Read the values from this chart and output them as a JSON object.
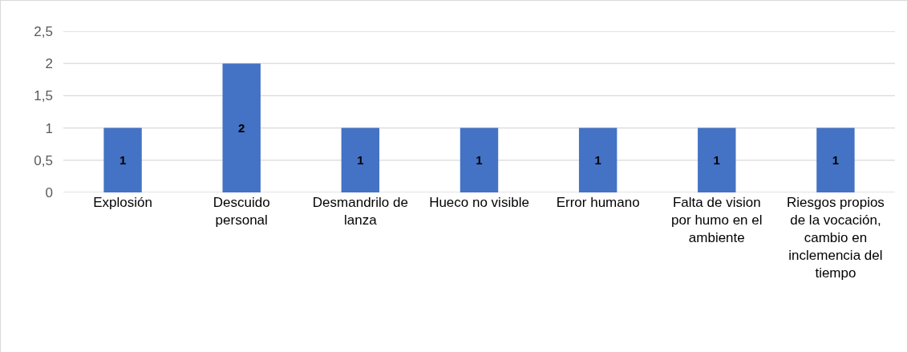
{
  "chart_data": {
    "type": "bar",
    "categories": [
      "Explosión",
      "Descuido personal",
      "Desmandrilo de lanza",
      "Hueco no visible",
      "Error humano",
      "Falta de vision por humo en el ambiente",
      "Riesgos propios de la vocación, cambio en inclemencia del tiempo"
    ],
    "values": [
      1,
      2,
      1,
      1,
      1,
      1,
      1
    ],
    "color": "#4472c4",
    "data_labels": true,
    "grid": "y",
    "ylim": [
      0,
      2.5
    ],
    "yticks": [
      0,
      {
        "value": 0.5,
        "label": "0,5"
      },
      1,
      {
        "value": 1.5,
        "label": "1,5"
      },
      2,
      {
        "value": 2.5,
        "label": "2,5"
      }
    ]
  }
}
